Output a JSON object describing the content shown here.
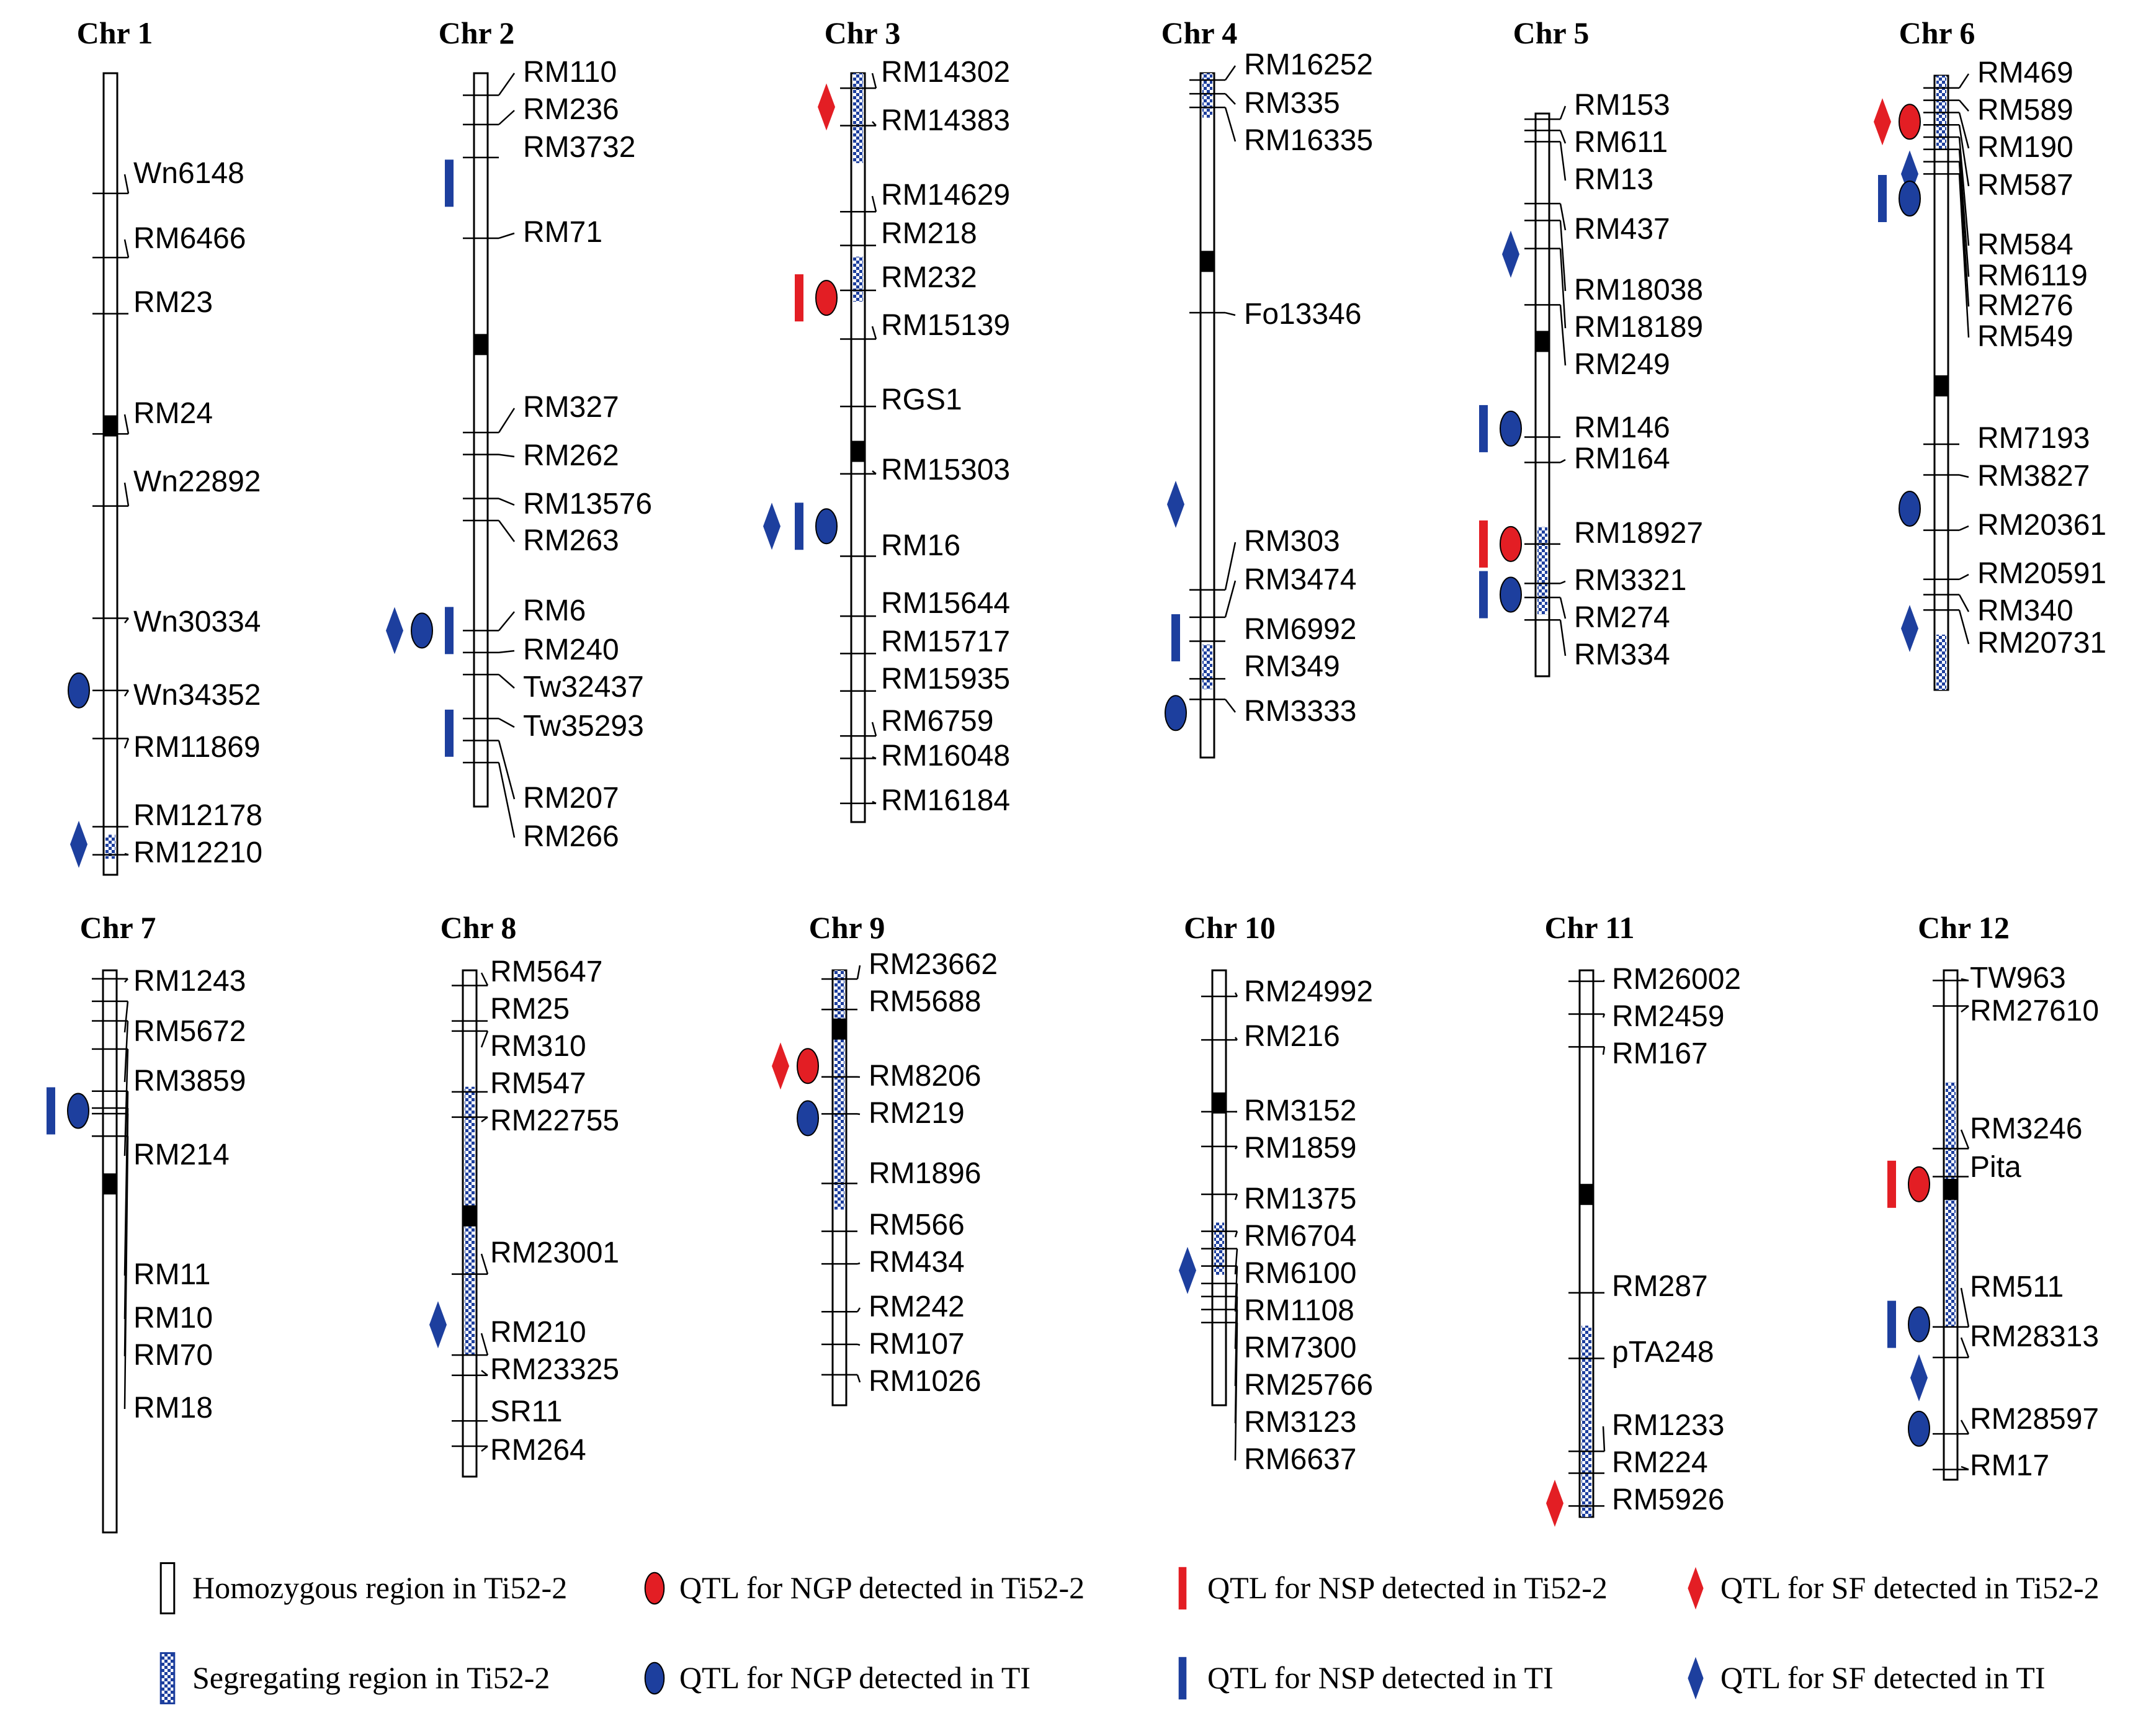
{
  "colors": {
    "red": "#e31e24",
    "blue": "#1d3f9e",
    "ink": "#000000"
  },
  "chromosomes": [
    {
      "name": "Chr 1",
      "centromere": 0.44,
      "seg": [
        [
          0.95,
          0.98
        ]
      ],
      "markers": [
        "Wn6148",
        "RM6466",
        "RM23",
        "RM24",
        "Wn22892",
        "Wn30334",
        "Wn34352",
        "RM11869",
        "RM12178",
        "RM12210"
      ],
      "marker_pos": [
        0.15,
        0.23,
        0.3,
        0.45,
        0.54,
        0.68,
        0.77,
        0.83,
        0.94,
        0.975
      ],
      "label_pos": [
        0.15,
        0.23,
        0.31,
        0.45,
        0.54,
        0.68,
        0.77,
        0.83,
        0.94,
        0.985
      ],
      "qtls": [
        {
          "icon": "ellipse-blue",
          "pos": 0.77
        },
        {
          "icon": "diamond-blue",
          "pos": 0.962
        }
      ]
    },
    {
      "name": "Chr 2",
      "centromere": 0.37,
      "seg": [],
      "markers": [
        "RM110",
        "RM236",
        "RM3732",
        "RM71",
        "RM327",
        "RM262",
        "RM13576",
        "RM263",
        "RM6",
        "RM240",
        "Tw32437",
        "Tw35293",
        "RM207",
        "RM266"
      ],
      "marker_pos": [
        0.03,
        0.07,
        0.115,
        0.225,
        0.49,
        0.52,
        0.58,
        0.61,
        0.76,
        0.79,
        0.82,
        0.88,
        0.91,
        0.94
      ],
      "label_pos": [
        0.012,
        0.06,
        0.11,
        0.23,
        0.48,
        0.545,
        0.606,
        0.653,
        0.74,
        0.79,
        0.835,
        0.885,
        0.98,
        1.03
      ],
      "qtls": [
        {
          "icon": "bar-blue",
          "pos": 0.15
        },
        {
          "icon": "diamond-blue",
          "pos": 0.76
        },
        {
          "icon": "ellipse-blue",
          "pos": 0.76
        },
        {
          "icon": "bar-blue",
          "pos": 0.76
        },
        {
          "icon": "bar-blue",
          "pos": 0.9
        }
      ]
    },
    {
      "name": "Chr 3",
      "centromere": 0.505,
      "seg": [
        [
          0.0,
          0.12
        ],
        [
          0.245,
          0.305
        ]
      ],
      "markers": [
        "RM14302",
        "RM14383",
        "RM14629",
        "RM218",
        "RM232",
        "RM15139",
        "RGS1",
        "RM15303",
        "RM16",
        "RM15644",
        "RM15717",
        "RM15935",
        "RM6759",
        "RM16048",
        "RM16184"
      ],
      "marker_pos": [
        0.02,
        0.07,
        0.185,
        0.23,
        0.29,
        0.355,
        0.445,
        0.535,
        0.645,
        0.725,
        0.775,
        0.825,
        0.885,
        0.915,
        0.975
      ],
      "label_pos": [
        0.015,
        0.08,
        0.185,
        0.245,
        0.31,
        0.38,
        0.445,
        0.545,
        0.645,
        0.725,
        0.775,
        0.825,
        0.88,
        0.925,
        0.985
      ],
      "qtls": [
        {
          "icon": "diamond-red",
          "pos": 0.045
        },
        {
          "icon": "bar-red",
          "pos": 0.3
        },
        {
          "icon": "ellipse-red",
          "pos": 0.3
        },
        {
          "icon": "diamond-blue",
          "pos": 0.605
        },
        {
          "icon": "bar-blue",
          "pos": 0.605
        },
        {
          "icon": "ellipse-blue",
          "pos": 0.605
        }
      ]
    },
    {
      "name": "Chr 4",
      "centromere": 0.275,
      "seg": [
        [
          0.0,
          0.065
        ],
        [
          0.835,
          0.9
        ]
      ],
      "markers": [
        "RM16252",
        "RM335",
        "RM16335",
        "Fo13346",
        "RM303",
        "RM3474",
        "RM6992",
        "RM349",
        "RM3333"
      ],
      "marker_pos": [
        0.01,
        0.03,
        0.05,
        0.35,
        0.755,
        0.795,
        0.83,
        0.885,
        0.915
      ],
      "label_pos": [
        0.0,
        0.055,
        0.105,
        0.37,
        0.735,
        0.79,
        0.855,
        0.905,
        0.965
      ],
      "qtls": [
        {
          "icon": "diamond-blue",
          "pos": 0.63
        },
        {
          "icon": "bar-blue",
          "pos": 0.825
        },
        {
          "icon": "ellipse-blue",
          "pos": 0.935
        }
      ]
    },
    {
      "name": "Chr 5",
      "centromere": 0.405,
      "seg": [
        [
          0.735,
          0.89
        ]
      ],
      "markers": [
        "RM153",
        "RM611",
        "RM13",
        "RM437",
        "RM18038",
        "RM18189",
        "RM249",
        "RM146",
        "RM164",
        "RM18927",
        "RM3321",
        "RM274",
        "RM334"
      ],
      "marker_pos": [
        0.01,
        0.03,
        0.05,
        0.16,
        0.19,
        0.24,
        0.34,
        0.575,
        0.62,
        0.765,
        0.835,
        0.86,
        0.9
      ],
      "label_pos": [
        0.0,
        0.065,
        0.13,
        0.22,
        0.33,
        0.395,
        0.46,
        0.575,
        0.63,
        0.76,
        0.845,
        0.91,
        0.98
      ],
      "qtls": [
        {
          "icon": "diamond-blue",
          "pos": 0.25
        },
        {
          "icon": "bar-blue",
          "pos": 0.56
        },
        {
          "icon": "ellipse-blue",
          "pos": 0.56
        },
        {
          "icon": "bar-red",
          "pos": 0.765
        },
        {
          "icon": "ellipse-red",
          "pos": 0.765
        },
        {
          "icon": "bar-blue",
          "pos": 0.855
        },
        {
          "icon": "ellipse-blue",
          "pos": 0.855
        }
      ]
    },
    {
      "name": "Chr 6",
      "centromere": 0.505,
      "seg": [
        [
          0.0,
          0.12
        ],
        [
          0.91,
          1.0
        ]
      ],
      "markers": [
        "RM469",
        "RM589",
        "RM190",
        "RM587",
        "RM584",
        "RM6119",
        "RM276",
        "RM549",
        "RM7193",
        "RM3827",
        "RM20361",
        "RM20591",
        "RM340",
        "RM20731"
      ],
      "marker_pos": [
        0.02,
        0.04,
        0.06,
        0.08,
        0.1,
        0.12,
        0.14,
        0.16,
        0.6,
        0.65,
        0.74,
        0.82,
        0.845,
        0.87
      ],
      "label_pos": [
        0.01,
        0.075,
        0.135,
        0.195,
        0.285,
        0.33,
        0.38,
        0.425,
        0.615,
        0.675,
        0.75,
        0.825,
        0.885,
        0.93
      ],
      "qtls": [
        {
          "icon": "diamond-red",
          "pos": 0.075
        },
        {
          "icon": "ellipse-red",
          "pos": 0.075
        },
        {
          "icon": "diamond-blue",
          "pos": 0.16
        },
        {
          "icon": "bar-blue",
          "pos": 0.2
        },
        {
          "icon": "ellipse-blue",
          "pos": 0.2
        },
        {
          "icon": "ellipse-blue",
          "pos": 0.705
        },
        {
          "icon": "diamond-blue",
          "pos": 0.9
        }
      ]
    },
    {
      "name": "Chr 7",
      "centromere": 0.38,
      "seg": [],
      "markers": [
        "RM1243",
        "RM5672",
        "RM3859",
        "RM214",
        "RM11",
        "RM10",
        "RM70",
        "RM18"
      ],
      "marker_pos": [
        0.015,
        0.055,
        0.09,
        0.14,
        0.215,
        0.245,
        0.255,
        0.295
      ],
      "label_pos": [
        0.015,
        0.05,
        0.085,
        0.135,
        0.215,
        0.245,
        0.27,
        0.305
      ],
      "qtls": [
        {
          "icon": "bar-blue",
          "pos": 0.25
        },
        {
          "icon": "ellipse-blue",
          "pos": 0.25
        }
      ]
    },
    {
      "name": "Chr 8",
      "centromere": 0.485,
      "seg": [
        [
          0.23,
          0.76
        ]
      ],
      "markers": [
        "RM5647",
        "RM25",
        "RM310",
        "RM547",
        "RM22755",
        "RM23001",
        "RM210",
        "RM23325",
        "SR11",
        "RM264"
      ],
      "marker_pos": [
        0.03,
        0.1,
        0.12,
        0.24,
        0.29,
        0.6,
        0.76,
        0.8,
        0.89,
        0.94
      ],
      "label_pos": [
        0.02,
        0.095,
        0.165,
        0.235,
        0.3,
        0.58,
        0.745,
        0.81,
        0.9,
        0.965
      ],
      "qtls": [
        {
          "icon": "diamond-blue",
          "pos": 0.7
        }
      ]
    },
    {
      "name": "Chr 9",
      "centromere": 0.135,
      "seg": [
        [
          0.0,
          0.55
        ]
      ],
      "markers": [
        "RM23662",
        "RM5688",
        "RM8206",
        "RM219",
        "RM1896",
        "RM566",
        "RM434",
        "RM242",
        "RM107",
        "RM1026"
      ],
      "marker_pos": [
        0.02,
        0.09,
        0.245,
        0.33,
        0.49,
        0.6,
        0.675,
        0.785,
        0.86,
        0.93
      ],
      "label_pos": [
        0.015,
        0.095,
        0.27,
        0.355,
        0.505,
        0.605,
        0.68,
        0.775,
        0.855,
        0.945
      ],
      "qtls": [
        {
          "icon": "diamond-red",
          "pos": 0.22
        },
        {
          "icon": "ellipse-red",
          "pos": 0.22
        },
        {
          "icon": "ellipse-blue",
          "pos": 0.34
        }
      ]
    },
    {
      "name": "Chr 10",
      "centromere": 0.305,
      "seg": [
        [
          0.58,
          0.7
        ]
      ],
      "markers": [
        "RM24992",
        "RM216",
        "RM3152",
        "RM1859",
        "RM1375",
        "RM6704",
        "RM6100",
        "RM1108",
        "RM7300",
        "RM25766",
        "RM3123",
        "RM6637"
      ],
      "marker_pos": [
        0.06,
        0.16,
        0.325,
        0.405,
        0.515,
        0.6,
        0.64,
        0.68,
        0.72,
        0.75,
        0.78,
        0.81
      ],
      "label_pos": [
        0.06,
        0.16,
        0.325,
        0.405,
        0.515,
        0.6,
        0.68,
        0.76,
        0.84,
        0.92,
        1.0,
        1.08
      ],
      "qtls": [
        {
          "icon": "diamond-blue",
          "pos": 0.69
        }
      ]
    },
    {
      "name": "Chr 11",
      "centromere": 0.41,
      "seg": [
        [
          0.65,
          1.0
        ]
      ],
      "markers": [
        "RM26002",
        "RM2459",
        "RM167",
        "RM287",
        "pTA248",
        "RM1233",
        "RM224",
        "RM5926"
      ],
      "marker_pos": [
        0.02,
        0.08,
        0.14,
        0.59,
        0.71,
        0.88,
        0.92,
        0.98
      ],
      "label_pos": [
        0.02,
        0.095,
        0.165,
        0.605,
        0.72,
        0.86,
        0.93,
        0.995
      ],
      "qtls": [
        {
          "icon": "diamond-red",
          "pos": 0.975
        }
      ]
    },
    {
      "name": "Chr 12",
      "centromere": 0.43,
      "seg": [
        [
          0.22,
          0.7
        ]
      ],
      "markers": [
        "TW963",
        "RM27610",
        "RM3246",
        "Pita",
        "RM511",
        "RM28313",
        "RM28597",
        "RM17"
      ],
      "marker_pos": [
        0.02,
        0.07,
        0.35,
        0.405,
        0.7,
        0.76,
        0.91,
        0.98
      ],
      "label_pos": [
        0.02,
        0.085,
        0.34,
        0.41,
        0.67,
        0.745,
        0.89,
        0.985
      ],
      "qtls": [
        {
          "icon": "bar-red",
          "pos": 0.42
        },
        {
          "icon": "ellipse-red",
          "pos": 0.42
        },
        {
          "icon": "bar-blue",
          "pos": 0.695
        },
        {
          "icon": "ellipse-blue",
          "pos": 0.695
        },
        {
          "icon": "diamond-blue",
          "pos": 0.8
        },
        {
          "icon": "ellipse-blue",
          "pos": 0.9
        }
      ]
    }
  ],
  "legend": [
    {
      "icon": "homozygous",
      "label": "Homozygous region in Ti52-2"
    },
    {
      "icon": "ellipse-red",
      "label": "QTL for NGP detected in Ti52-2"
    },
    {
      "icon": "bar-red",
      "label": "QTL for NSP detected in Ti52-2"
    },
    {
      "icon": "diamond-red",
      "label": "QTL for SF detected in Ti52-2"
    },
    {
      "icon": "segregating",
      "label": "Segregating region in Ti52-2"
    },
    {
      "icon": "ellipse-blue",
      "label": "QTL for NGP detected in TI"
    },
    {
      "icon": "bar-blue",
      "label": "QTL for NSP detected in TI"
    },
    {
      "icon": "diamond-blue",
      "label": "QTL for SF detected in TI"
    }
  ]
}
